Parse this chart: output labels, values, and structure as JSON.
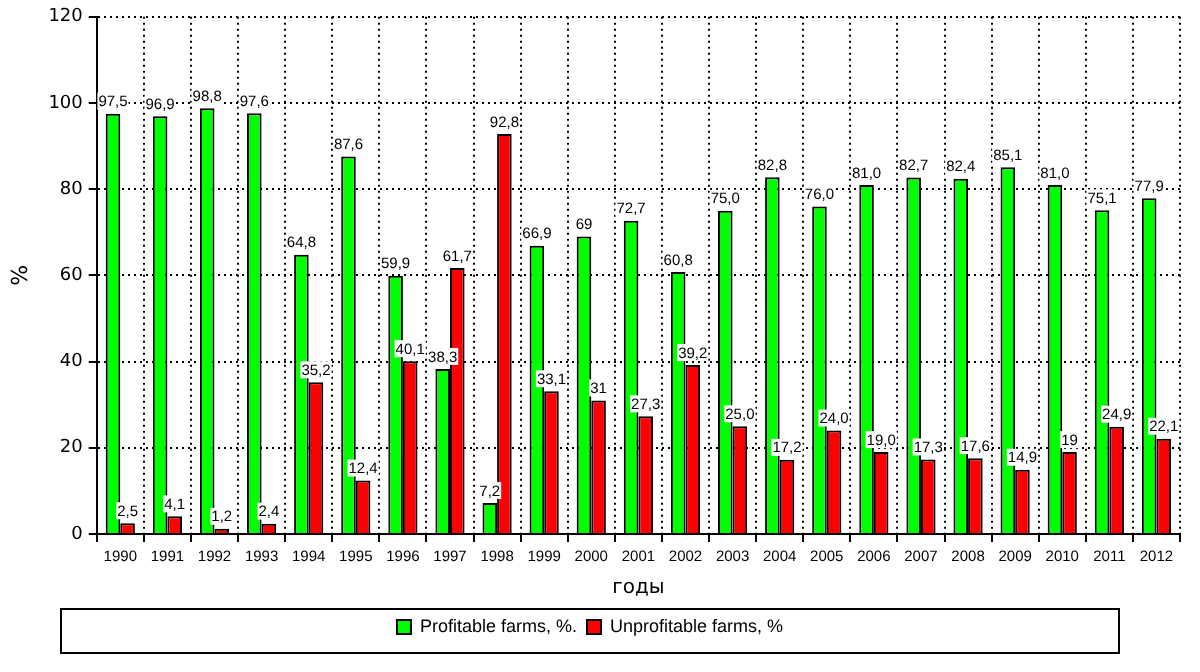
{
  "chart_data": {
    "type": "bar",
    "xlabel": "годы",
    "ylabel": "%",
    "categories": [
      "1990",
      "1991",
      "1992",
      "1993",
      "1994",
      "1995",
      "1996",
      "1997",
      "1998",
      "1999",
      "2000",
      "2001",
      "2002",
      "2003",
      "2004",
      "2005",
      "2006",
      "2007",
      "2008",
      "2009",
      "2010",
      "2011",
      "2012"
    ],
    "series": [
      {
        "name": "Profitable farms, %.",
        "color": "#00ff00",
        "values": [
          97.5,
          96.9,
          98.8,
          97.6,
          64.8,
          87.6,
          59.9,
          38.3,
          7.2,
          66.9,
          69,
          72.7,
          60.8,
          75.0,
          82.8,
          76.0,
          81.0,
          82.7,
          82.4,
          85.1,
          81.0,
          75.1,
          77.9
        ],
        "value_labels": [
          "97,5",
          "96,9",
          "98,8",
          "97,6",
          "64,8",
          "87,6",
          "59,9",
          "38,3",
          "7,2",
          "66,9",
          "69",
          "72,7",
          "60,8",
          "75,0",
          "82,8",
          "76,0",
          "81,0",
          "82,7",
          "82,4",
          "85,1",
          "81,0",
          "75,1",
          "77,9"
        ]
      },
      {
        "name": "Unprofitable farms, %",
        "color": "#ff0000",
        "values": [
          2.5,
          4.1,
          1.2,
          2.4,
          35.2,
          12.4,
          40.1,
          61.7,
          92.8,
          33.1,
          31,
          27.3,
          39.2,
          25.0,
          17.2,
          24.0,
          19.0,
          17.3,
          17.6,
          14.9,
          19,
          24.9,
          22.1
        ],
        "value_labels": [
          "2,5",
          "4,1",
          "1,2",
          "2,4",
          "35,2",
          "12,4",
          "40,1",
          "61,7",
          "92,8",
          "33,1",
          "31",
          "27,3",
          "39,2",
          "25,0",
          "17,2",
          "24,0",
          "19,0",
          "17,3",
          "17,6",
          "14,9",
          "19",
          "24,9",
          "22,1"
        ]
      }
    ],
    "ylim": [
      0,
      120
    ],
    "yticks": [
      0,
      20,
      40,
      60,
      80,
      100,
      120
    ],
    "grid": true,
    "legend": "bottom"
  }
}
